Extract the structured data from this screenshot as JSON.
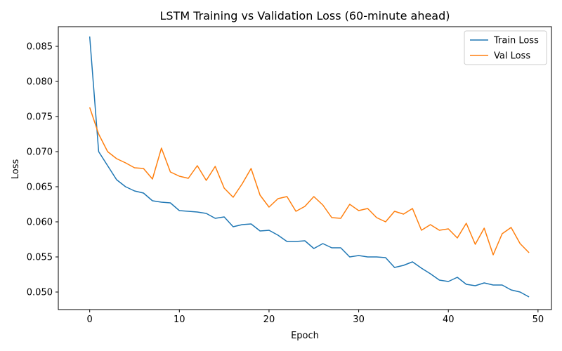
{
  "chart_data": {
    "type": "line",
    "title": "LSTM Training vs Validation Loss (60-minute ahead)",
    "xlabel": "Epoch",
    "ylabel": "Loss",
    "xlim": [
      -3.5,
      51.5
    ],
    "ylim": [
      0.0475,
      0.0878
    ],
    "xticks": [
      0,
      10,
      20,
      30,
      40,
      50
    ],
    "xtick_labels": [
      "0",
      "10",
      "20",
      "30",
      "40",
      "50"
    ],
    "yticks": [
      0.05,
      0.055,
      0.06,
      0.065,
      0.07,
      0.075,
      0.08,
      0.085
    ],
    "ytick_labels": [
      "0.050",
      "0.055",
      "0.060",
      "0.065",
      "0.070",
      "0.075",
      "0.080",
      "0.085"
    ],
    "grid": false,
    "legend_position": "top-right",
    "x": [
      0,
      1,
      2,
      3,
      4,
      5,
      6,
      7,
      8,
      9,
      10,
      11,
      12,
      13,
      14,
      15,
      16,
      17,
      18,
      19,
      20,
      21,
      22,
      23,
      24,
      25,
      26,
      27,
      28,
      29,
      30,
      31,
      32,
      33,
      34,
      35,
      36,
      37,
      38,
      39,
      40,
      41,
      42,
      43,
      44,
      45,
      46,
      47,
      48,
      49
    ],
    "series": [
      {
        "name": "Train Loss",
        "color": "#1f77b4",
        "values": [
          0.0864,
          0.07,
          0.068,
          0.066,
          0.065,
          0.0644,
          0.0641,
          0.063,
          0.0628,
          0.0627,
          0.0616,
          0.0615,
          0.0614,
          0.0612,
          0.0605,
          0.0607,
          0.0593,
          0.0596,
          0.0597,
          0.0587,
          0.0588,
          0.0581,
          0.0572,
          0.0572,
          0.0573,
          0.0562,
          0.0569,
          0.0563,
          0.0563,
          0.055,
          0.0552,
          0.055,
          0.055,
          0.0549,
          0.0535,
          0.0538,
          0.0543,
          0.0534,
          0.0526,
          0.0517,
          0.0515,
          0.0521,
          0.0511,
          0.0509,
          0.0513,
          0.051,
          0.051,
          0.0503,
          0.05,
          0.0493
        ]
      },
      {
        "name": "Val Loss",
        "color": "#ff7f0e",
        "values": [
          0.0763,
          0.0725,
          0.07,
          0.069,
          0.0684,
          0.0677,
          0.0676,
          0.0661,
          0.0705,
          0.0671,
          0.0665,
          0.0662,
          0.068,
          0.0659,
          0.0679,
          0.0648,
          0.0635,
          0.0654,
          0.0676,
          0.0638,
          0.0621,
          0.0633,
          0.0636,
          0.0615,
          0.0622,
          0.0636,
          0.0624,
          0.0606,
          0.0605,
          0.0625,
          0.0616,
          0.0619,
          0.0606,
          0.06,
          0.0615,
          0.0611,
          0.0619,
          0.0588,
          0.0596,
          0.0588,
          0.059,
          0.0577,
          0.0598,
          0.0568,
          0.0591,
          0.0553,
          0.0583,
          0.0592,
          0.0569,
          0.0556
        ]
      }
    ]
  }
}
